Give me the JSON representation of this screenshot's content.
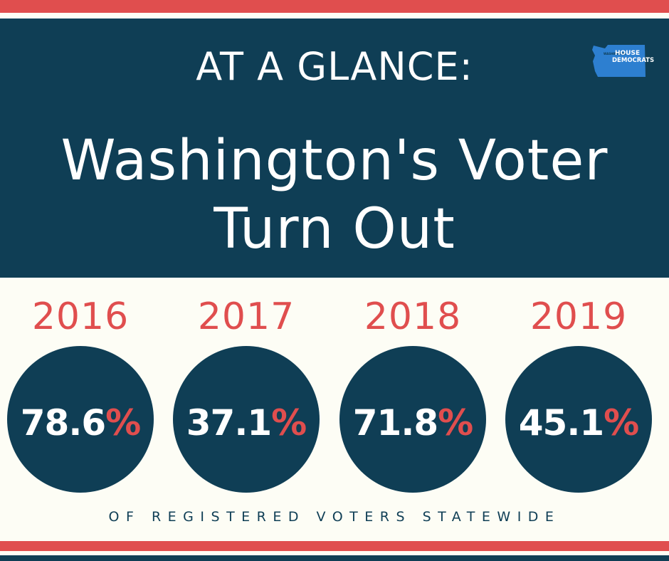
{
  "colors": {
    "navy": "#0f3e55",
    "red": "#e04e4e",
    "cream": "#fdfdf5",
    "white": "#ffffff",
    "logo_blue": "#2d7fd0"
  },
  "header": {
    "kicker": "AT A GLANCE:",
    "title_line1": "Washington's Voter",
    "title_line2": "Turn Out"
  },
  "logo": {
    "icon": "washington-state-icon",
    "line1": "HOUSE",
    "line2": "DEMOCRATS",
    "small": "WASHINGTON"
  },
  "stats": [
    {
      "year": "2016",
      "value": "78.6",
      "unit": "%"
    },
    {
      "year": "2017",
      "value": "37.1",
      "unit": "%"
    },
    {
      "year": "2018",
      "value": "71.8",
      "unit": "%"
    },
    {
      "year": "2019",
      "value": "45.1",
      "unit": "%"
    }
  ],
  "tagline": "OF REGISTERED VOTERS STATEWIDE"
}
